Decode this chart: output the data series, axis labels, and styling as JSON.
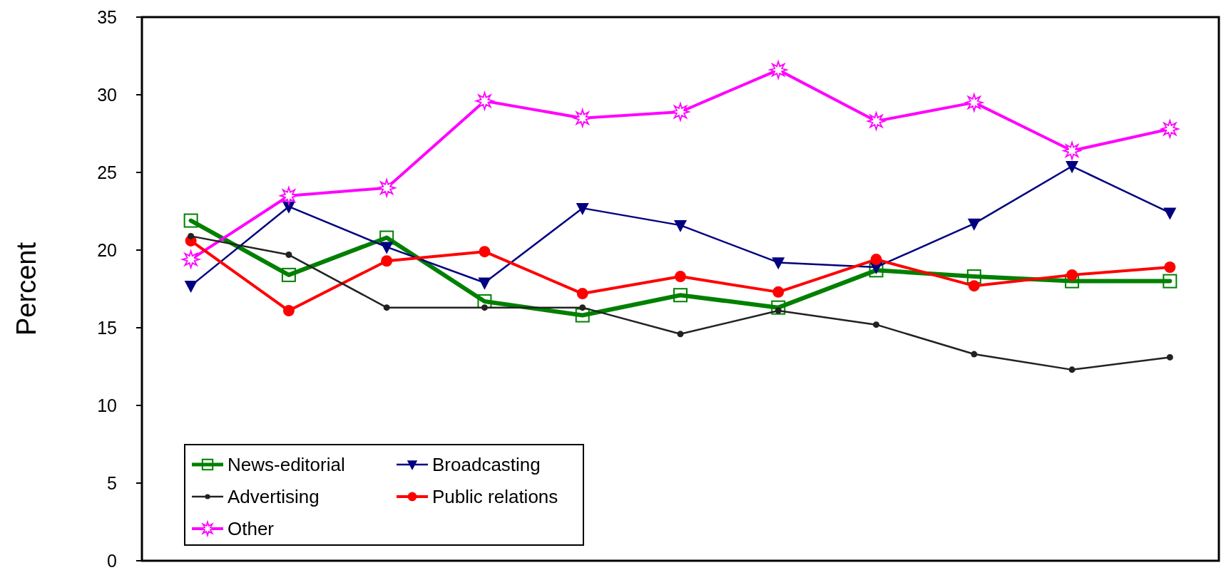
{
  "chart_data": {
    "type": "line",
    "ylabel": "Percent",
    "categories": [
      null,
      null,
      null,
      null,
      null,
      null,
      null,
      null,
      null,
      null,
      null
    ],
    "ylim": [
      0,
      35
    ],
    "yticks": [
      0,
      5,
      10,
      15,
      20,
      25,
      30,
      35
    ],
    "grid": false,
    "legend": "bottom left",
    "series": [
      {
        "name": "News-editorial",
        "color": "#008000",
        "marker": "square",
        "values": [
          21.9,
          18.4,
          20.8,
          16.7,
          15.8,
          17.1,
          16.3,
          18.7,
          18.3,
          18.0,
          18.0
        ]
      },
      {
        "name": "Broadcasting",
        "color": "#000080",
        "marker": "triangle",
        "values": [
          17.7,
          22.8,
          20.2,
          17.9,
          22.7,
          21.6,
          19.2,
          18.9,
          21.7,
          25.4,
          22.4
        ]
      },
      {
        "name": "Advertising",
        "color": "#222222",
        "marker": "circle",
        "values": [
          20.9,
          19.7,
          16.3,
          16.3,
          16.3,
          14.6,
          16.1,
          15.2,
          13.3,
          12.3,
          13.1
        ]
      },
      {
        "name": "Public relations",
        "color": "#ff0000",
        "marker": "circle",
        "values": [
          20.6,
          16.1,
          19.3,
          19.9,
          17.2,
          18.3,
          17.3,
          19.4,
          17.7,
          18.4,
          18.9
        ]
      },
      {
        "name": "Other",
        "color": "#ff00ff",
        "marker": "star",
        "values": [
          19.4,
          23.5,
          24.0,
          29.6,
          28.5,
          28.9,
          31.6,
          28.3,
          29.5,
          26.4,
          27.8
        ]
      }
    ]
  }
}
